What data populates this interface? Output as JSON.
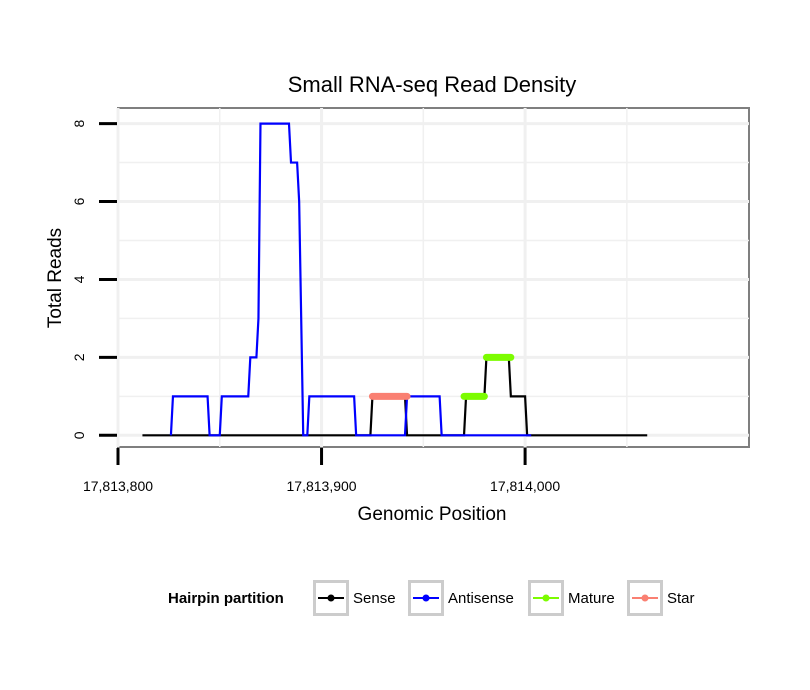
{
  "chart_data": {
    "type": "line",
    "title": "Small RNA-seq Read Density",
    "xlabel": "Genomic Position",
    "ylabel": "Total Reads",
    "xlim": [
      17813800,
      17814110
    ],
    "ylim": [
      -0.3,
      8.4
    ],
    "x_ticks": [
      17813800,
      17813900,
      17814000
    ],
    "x_tick_labels": [
      "17,813,800",
      "17,813,900",
      "17,814,000"
    ],
    "y_ticks": [
      0,
      2,
      4,
      6,
      8
    ],
    "y_tick_labels": [
      "0",
      "2",
      "4",
      "6",
      "8"
    ],
    "grid": true,
    "legend": {
      "title": "Hairpin partition",
      "placement": "bottom",
      "entries": [
        "Sense",
        "Antisense",
        "Mature",
        "Star"
      ]
    },
    "series": [
      {
        "name": "Sense",
        "color": "#000000",
        "points": [
          [
            17813812,
            0
          ],
          [
            17813924,
            0
          ],
          [
            17813925,
            1
          ],
          [
            17813941,
            1
          ],
          [
            17813942,
            0
          ],
          [
            17813970,
            0
          ],
          [
            17813971,
            1
          ],
          [
            17813980,
            1
          ],
          [
            17813981,
            2
          ],
          [
            17813992,
            2
          ],
          [
            17813993,
            1
          ],
          [
            17814000,
            1
          ],
          [
            17814001,
            0
          ],
          [
            17814060,
            0
          ]
        ]
      },
      {
        "name": "Antisense",
        "color": "#0000ff",
        "points": [
          [
            17813826,
            0
          ],
          [
            17813827,
            1
          ],
          [
            17813844,
            1
          ],
          [
            17813845,
            0
          ],
          [
            17813850,
            0
          ],
          [
            17813851,
            1
          ],
          [
            17813864,
            1
          ],
          [
            17813865,
            2
          ],
          [
            17813868,
            2
          ],
          [
            17813869,
            3
          ],
          [
            17813870,
            8
          ],
          [
            17813884,
            8
          ],
          [
            17813885,
            7
          ],
          [
            17813888,
            7
          ],
          [
            17813889,
            6
          ],
          [
            17813891,
            0
          ],
          [
            17813893,
            0
          ],
          [
            17813894,
            1
          ],
          [
            17813916,
            1
          ],
          [
            17813917,
            0
          ],
          [
            17813925,
            0
          ],
          [
            17813941,
            0
          ],
          [
            17813942,
            1
          ],
          [
            17813958,
            1
          ],
          [
            17813959,
            0
          ],
          [
            17813970,
            0
          ],
          [
            17813971,
            0
          ],
          [
            17814003,
            0
          ]
        ]
      },
      {
        "name": "Mature",
        "color": "#7cfc00",
        "segments": [
          [
            [
              17813970,
              1
            ],
            [
              17813980,
              1
            ]
          ],
          [
            [
              17813981,
              2
            ],
            [
              17813993,
              2
            ]
          ]
        ]
      },
      {
        "name": "Star",
        "color": "#fa8072",
        "segments": [
          [
            [
              17813925,
              1
            ],
            [
              17813942,
              1
            ]
          ]
        ]
      }
    ]
  }
}
